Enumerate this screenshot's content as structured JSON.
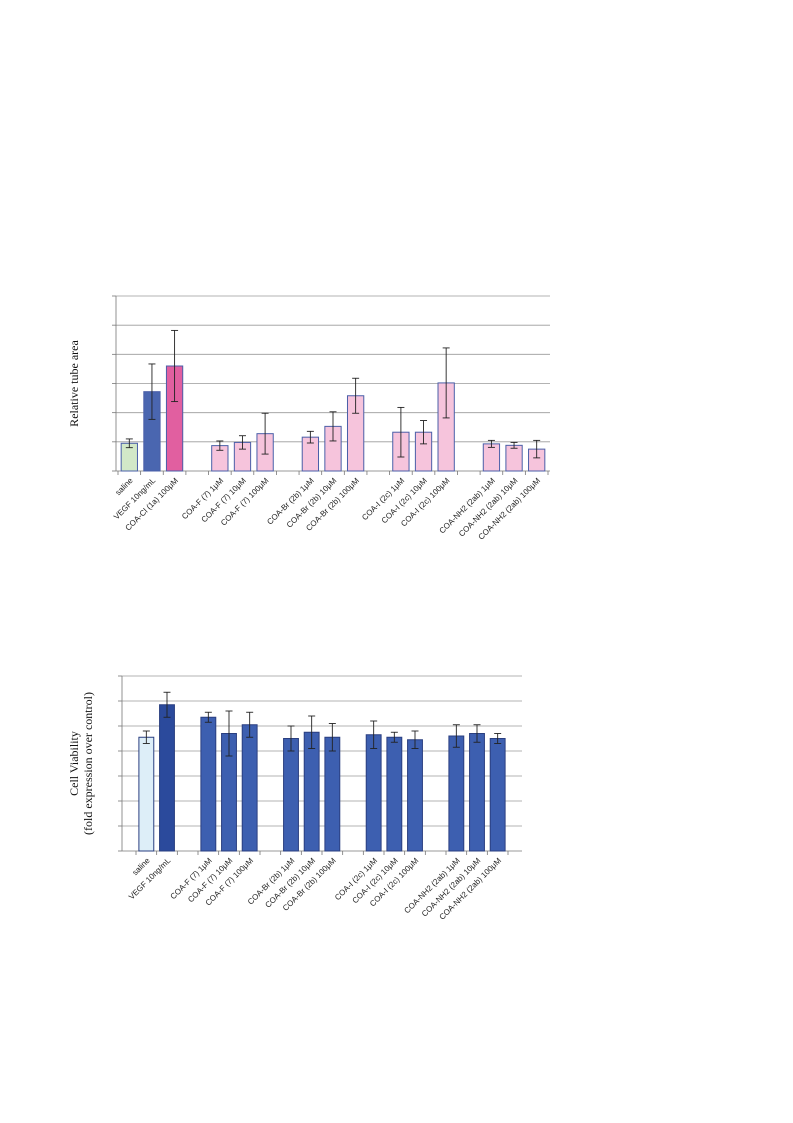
{
  "chart_data": [
    {
      "type": "bar",
      "ylabel": "Relative tube area",
      "ylim": [
        0,
        6
      ],
      "grid": true,
      "categories": [
        "saline",
        "VEGF 10ng/mL",
        "COA-Cl (1a) 100μM",
        "COA-F (7) 1μM",
        "COA-F (7) 10μM",
        "COA-F (7) 100μM",
        "COA-Br (2b) 1μM",
        "COA-Br (2b) 10μM",
        "COA-Br (2b) 100μM",
        "COA-I (2c) 1μM",
        "COA-I (2c) 10μM",
        "COA-I (2c) 100μM",
        "COA-NH2 (2ab) 1μM",
        "COA-NH2 (2ab) 10μM",
        "COA-NH2 (2ab) 100μM"
      ],
      "groups": [
        3,
        3,
        3,
        3,
        3
      ],
      "values": [
        0.95,
        2.72,
        3.6,
        0.87,
        0.98,
        1.28,
        1.16,
        1.53,
        2.58,
        1.33,
        1.33,
        3.02,
        0.93,
        0.88,
        0.75
      ],
      "errors": [
        0.15,
        0.95,
        1.22,
        0.16,
        0.23,
        0.7,
        0.2,
        0.5,
        0.6,
        0.85,
        0.4,
        1.2,
        0.12,
        0.1,
        0.3
      ],
      "colors": [
        "#d2e8c8",
        "#4a66b0",
        "#e15fa0",
        "#f6c4dc",
        "#f6c4dc",
        "#f6c4dc",
        "#f6c4dc",
        "#f6c4dc",
        "#f6c4dc",
        "#f6c4dc",
        "#f6c4dc",
        "#f6c4dc",
        "#f6c4dc",
        "#f6c4dc",
        "#f6c4dc"
      ],
      "edge_color": "#4a5fa8"
    },
    {
      "type": "bar",
      "ylabel": [
        "Cell Viability",
        "(fold expression over control)"
      ],
      "ylim": [
        0,
        7
      ],
      "grid": true,
      "categories": [
        "saline",
        "VEGF 10ng/mL",
        "COA-F (7) 1μM",
        "COA-F (7) 10μM",
        "COA-F (7) 100μM",
        "COA-Br (2b) 1μM",
        "COA-Br (2b) 10μM",
        "COA-Br (2b) 100μM",
        "COA-I (2c) 1μM",
        "COA-I (2c) 10μM",
        "COA-I (2c) 100μM",
        "COA-NH2 (2ab) 1μM",
        "COA-NH2 (2ab) 10μM",
        "COA-NH2 (2ab) 100μM"
      ],
      "groups": [
        2,
        3,
        3,
        3,
        3
      ],
      "values": [
        4.55,
        5.85,
        5.35,
        4.7,
        5.05,
        4.5,
        4.75,
        4.55,
        4.65,
        4.55,
        4.45,
        4.6,
        4.7,
        4.5
      ],
      "errors": [
        0.25,
        0.5,
        0.2,
        0.9,
        0.5,
        0.5,
        0.65,
        0.55,
        0.55,
        0.2,
        0.35,
        0.45,
        0.35,
        0.2
      ],
      "colors": [
        "#ddeef8",
        "#2b4a9c",
        "#3d5fb0",
        "#3d5fb0",
        "#3d5fb0",
        "#3d5fb0",
        "#3d5fb0",
        "#3d5fb0",
        "#3d5fb0",
        "#3d5fb0",
        "#3d5fb0",
        "#3d5fb0",
        "#3d5fb0",
        "#3d5fb0"
      ],
      "edge_color": "#2a3f80"
    }
  ]
}
